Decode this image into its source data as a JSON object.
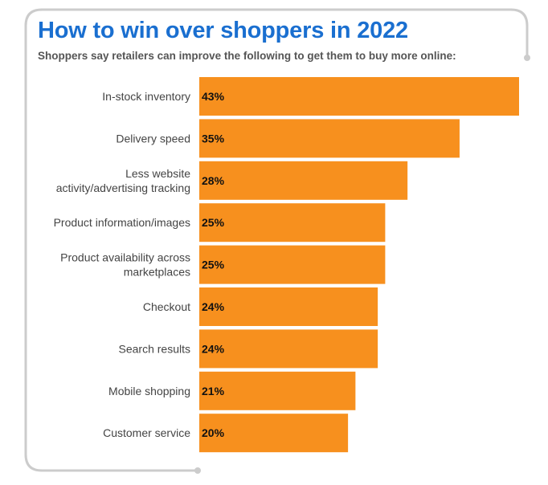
{
  "colors": {
    "bar": "#f7901e",
    "frame": "#cccccc",
    "title": "#1a6fd0",
    "subtitle": "#555555"
  },
  "chart_data": {
    "type": "bar",
    "orientation": "horizontal",
    "title": "How to win over shoppers in 2022",
    "subtitle": "Shoppers say retailers can improve the following to get them to buy more online:",
    "categories": [
      "In-stock inventory",
      "Delivery speed",
      "Less website activity/advertising tracking",
      "Product information/images",
      "Product availability across marketplaces",
      "Checkout",
      "Search results",
      "Mobile shopping",
      "Customer service"
    ],
    "category_lines": [
      [
        "In-stock inventory"
      ],
      [
        "Delivery speed"
      ],
      [
        "Less website",
        "activity/advertising tracking"
      ],
      [
        "Product information/images"
      ],
      [
        "Product availability across",
        "marketplaces"
      ],
      [
        "Checkout"
      ],
      [
        "Search results"
      ],
      [
        "Mobile shopping"
      ],
      [
        "Customer service"
      ]
    ],
    "values": [
      43,
      35,
      28,
      25,
      25,
      24,
      24,
      21,
      20
    ],
    "value_labels": [
      "43%",
      "35%",
      "28%",
      "25%",
      "25%",
      "24%",
      "24%",
      "21%",
      "20%"
    ],
    "unit": "%",
    "xlim": [
      0,
      43
    ],
    "grid": false,
    "legend": "none"
  }
}
